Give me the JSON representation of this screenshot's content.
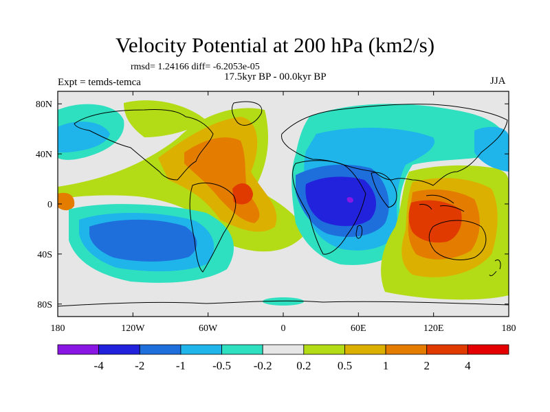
{
  "figure": {
    "title": "Velocity Potential at 200 hPa (km2/s)",
    "stats": "rmsd= 1.24166 diff= -6.2053e-05",
    "experiment": "Expt = temds-temca",
    "period": "17.5kyr BP - 00.0kyr BP",
    "season": "JJA"
  },
  "map": {
    "projection": "cylindrical-equidistant",
    "lon_range": [
      -180,
      180
    ],
    "lat_range": [
      -90,
      90
    ],
    "lon_ticks": [
      {
        "value": -180,
        "label": "180"
      },
      {
        "value": -120,
        "label": "120W"
      },
      {
        "value": -60,
        "label": "60W"
      },
      {
        "value": 0,
        "label": "0"
      },
      {
        "value": 60,
        "label": "60E"
      },
      {
        "value": 120,
        "label": "120E"
      },
      {
        "value": 180,
        "label": "180"
      }
    ],
    "lat_ticks": [
      {
        "value": 80,
        "label": "80N"
      },
      {
        "value": 40,
        "label": "40N"
      },
      {
        "value": 0,
        "label": "0"
      },
      {
        "value": -40,
        "label": "40S"
      },
      {
        "value": -80,
        "label": "80S"
      }
    ],
    "field_features": [
      {
        "name": "indian-ocean-low",
        "lon": 55,
        "lat": 0,
        "value": -3.2
      },
      {
        "name": "indonesia-high",
        "lon": 120,
        "lat": -10,
        "value": 3.5
      },
      {
        "name": "tropical-atlantic-high",
        "lon": -55,
        "lat": 8,
        "value": 2.4
      },
      {
        "name": "south-pacific-low",
        "lon": -110,
        "lat": -35,
        "value": -1.6
      },
      {
        "name": "north-atlantic-low",
        "lon": 10,
        "lat": 45,
        "value": -1.0
      }
    ]
  },
  "colorbar": {
    "colors": [
      "#8a16e4",
      "#2222dc",
      "#1e6edc",
      "#1fb4ea",
      "#2ee0c0",
      "#e6e6e6",
      "#b4dc16",
      "#dcb000",
      "#e47c00",
      "#e03a00",
      "#e40000"
    ],
    "labels": [
      "-4",
      "-2",
      "-1",
      "-0.5",
      "-0.2",
      "0.2",
      "0.5",
      "1",
      "2",
      "4"
    ]
  }
}
